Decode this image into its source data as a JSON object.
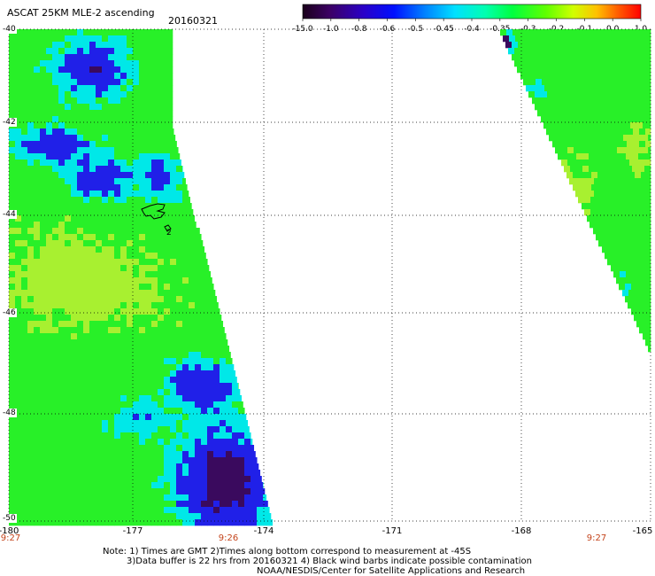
{
  "header": {
    "title": "ASCAT 25KM MLE-2 ascending",
    "date": "20160321"
  },
  "colorbar": {
    "labels": [
      "-15.0",
      "-1.0",
      "-0.8",
      "-0.6",
      "-0.5",
      "-0.45",
      "-0.4",
      "-0.35",
      "-0.3",
      "-0.2",
      "-0.1",
      "0.0",
      "1.0"
    ]
  },
  "map": {
    "lat_labels": [
      "-40",
      "-42",
      "-44",
      "-46",
      "-48",
      "-50"
    ],
    "lon_labels": [
      "-180",
      "-177",
      "-174",
      "-171",
      "-168",
      "-165"
    ],
    "time_labels": [
      "9:27",
      "9:26",
      "9:27"
    ],
    "grid": true,
    "island_label": "2"
  },
  "notes": {
    "line1": "Note: 1) Times are GMT 2)Times along bottom correspond to measurement at -45S",
    "line2": "3)Data buffer is 22 hrs from 20160321 4) Black wind barbs indicate possible contamination",
    "line3": "NOAA/NESDIS/Center for Satellite Applications and Research"
  },
  "colors": {
    "purple": "#3a0a5e",
    "blue": "#2020e8",
    "cyan": "#00e8e8",
    "green": "#28f028",
    "lime": "#a8f030"
  }
}
